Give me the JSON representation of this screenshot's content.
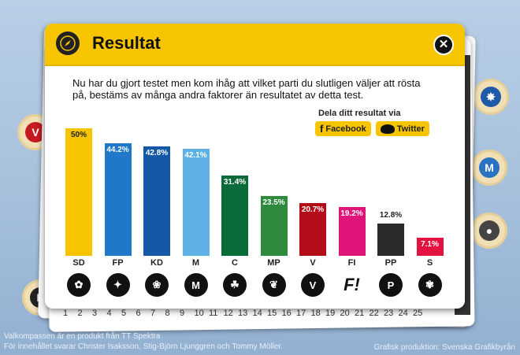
{
  "header": {
    "title": "Resultat"
  },
  "intro": "Nu har du gjort testet men kom ihåg att vilket parti du slutligen väljer att rösta på, bestäms av många andra faktorer än resultatet av detta test.",
  "share": {
    "title": "Dela ditt resultat via",
    "facebook": "Facebook",
    "twitter": "Twitter"
  },
  "chart_data": {
    "type": "bar",
    "categories": [
      "SD",
      "FP",
      "KD",
      "M",
      "C",
      "MP",
      "V",
      "FI",
      "PP",
      "S"
    ],
    "values": [
      50,
      44.2,
      42.8,
      42.1,
      31.4,
      23.5,
      20.7,
      19.2,
      12.8,
      7.1
    ],
    "labels": [
      "50%",
      "44.2%",
      "42.8%",
      "42.1%",
      "31.4%",
      "23.5%",
      "20.7%",
      "19.2%",
      "12.8%",
      "7.1%"
    ],
    "colors": [
      "#f7c500",
      "#1f78c8",
      "#1559a6",
      "#5fb0e4",
      "#0a6b3a",
      "#2e8b3e",
      "#b30d1a",
      "#e0157a",
      "#2b2b2b",
      "#e3133f"
    ],
    "icons": [
      "sd-flower-icon",
      "fp-logo-icon",
      "kd-flower-icon",
      "m-logo-icon",
      "c-clover-icon",
      "mp-leaf-icon",
      "v-logo-icon",
      "fi-logo-icon",
      "pp-logo-icon",
      "s-rose-icon"
    ],
    "icon_glyphs": [
      "✿",
      "✦",
      "❀",
      "M",
      "☘",
      "❦",
      "V",
      "F!",
      "P",
      "✾"
    ],
    "ylim": [
      0,
      50
    ]
  },
  "numbers": [
    "1",
    "2",
    "3",
    "4",
    "5",
    "6",
    "7",
    "8",
    "9",
    "10",
    "11",
    "12",
    "13",
    "14",
    "15",
    "16",
    "17",
    "18",
    "19",
    "20",
    "21",
    "22",
    "23",
    "24",
    "25"
  ],
  "footer": {
    "line1": "Valkompassen är en produkt från TT Spektra",
    "line2": "För innehållet svarar Christer Isaksson, Stig-Björn Ljunggren och Tommy Möller.",
    "right": "Grafisk produktion: Svenska Grafikbyrån"
  }
}
